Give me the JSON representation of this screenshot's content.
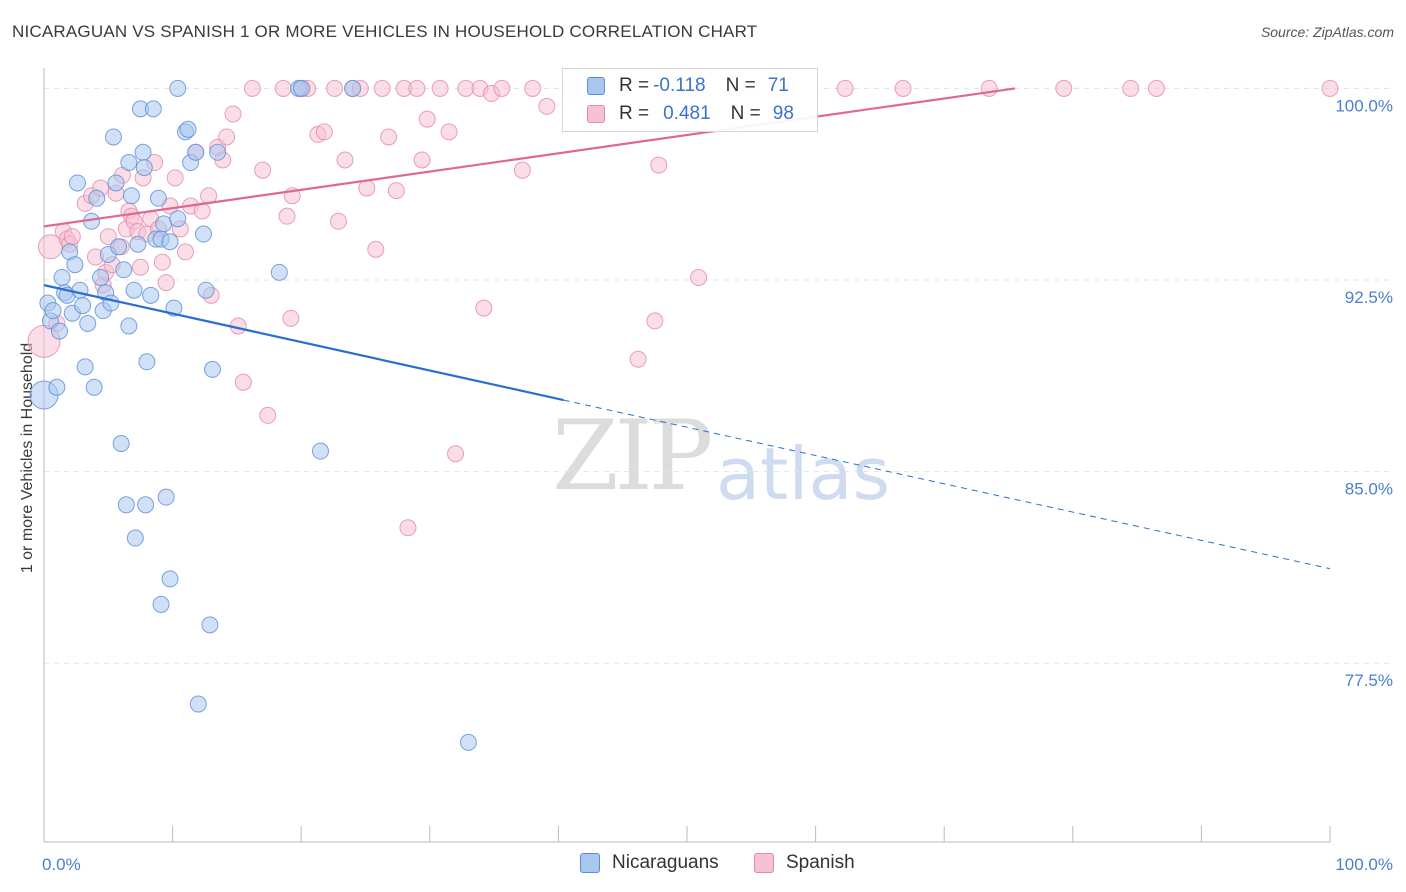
{
  "header": {
    "title": "NICARAGUAN VS SPANISH 1 OR MORE VEHICLES IN HOUSEHOLD CORRELATION CHART",
    "source": "Source: ZipAtlas.com"
  },
  "watermark": {
    "zip": "ZIP",
    "atlas": "atlas"
  },
  "colors": {
    "nicaraguan_fill": "#a9c6ee",
    "nicaraguan_stroke": "#5a8fd8",
    "nicaraguan_line": "#2a6fd0",
    "spanish_fill": "#f6c1d1",
    "spanish_stroke": "#e48aa8",
    "spanish_line": "#e0688f",
    "tick_text": "#4a7fd0",
    "grid": "#e4e4e4"
  },
  "legend": {
    "rows": [
      {
        "r_label": "R =",
        "r_value": "-0.118",
        "n_label": "N =",
        "n_value": "71"
      },
      {
        "r_label": "R =",
        "r_value": "0.481",
        "n_label": "N =",
        "n_value": "98"
      }
    ]
  },
  "bottom_legend": {
    "items": [
      "Nicaraguans",
      "Spanish"
    ]
  },
  "chart_data": {
    "type": "scatter",
    "title": "NICARAGUAN VS SPANISH 1 OR MORE VEHICLES IN HOUSEHOLD CORRELATION CHART",
    "xlabel": "",
    "ylabel": "1 or more Vehicles in Household",
    "xlim": [
      0,
      100
    ],
    "ylim": [
      70.5,
      100.8
    ],
    "x_tick_labels": [
      "0.0%",
      "100.0%"
    ],
    "y_ticks": [
      {
        "value": 100.0,
        "label": "100.0%"
      },
      {
        "value": 92.5,
        "label": "92.5%"
      },
      {
        "value": 85.0,
        "label": "85.0%"
      },
      {
        "value": 77.5,
        "label": "77.5%"
      }
    ],
    "grid": true,
    "legend_position": "top-center",
    "series": [
      {
        "name": "Nicaraguans",
        "r": -0.118,
        "n": 71,
        "trend": {
          "x0": 0,
          "y0": 92.3,
          "x1": 40.4,
          "y1": 87.8,
          "dash_to_x": 100,
          "dash_to_y": 81.2
        },
        "points": [
          [
            0.0,
            88.0,
            14
          ],
          [
            0.3,
            91.6,
            8
          ],
          [
            0.5,
            90.9,
            8
          ],
          [
            0.7,
            91.3,
            8
          ],
          [
            1.0,
            88.3,
            8
          ],
          [
            1.2,
            90.5,
            8
          ],
          [
            1.4,
            92.6,
            8
          ],
          [
            1.6,
            92.0,
            8
          ],
          [
            1.8,
            91.9,
            8
          ],
          [
            2.0,
            93.6,
            8
          ],
          [
            2.2,
            91.2,
            8
          ],
          [
            2.4,
            93.1,
            8
          ],
          [
            2.6,
            96.3,
            8
          ],
          [
            2.8,
            92.1,
            8
          ],
          [
            3.0,
            91.5,
            8
          ],
          [
            3.2,
            89.1,
            8
          ],
          [
            3.4,
            90.8,
            8
          ],
          [
            3.7,
            94.8,
            8
          ],
          [
            3.9,
            88.3,
            8
          ],
          [
            4.1,
            95.7,
            8
          ],
          [
            4.4,
            92.6,
            8
          ],
          [
            4.6,
            91.3,
            8
          ],
          [
            4.8,
            92.0,
            8
          ],
          [
            5.0,
            93.5,
            8
          ],
          [
            5.2,
            91.6,
            8
          ],
          [
            5.4,
            98.1,
            8
          ],
          [
            5.6,
            96.3,
            8
          ],
          [
            5.8,
            93.8,
            8
          ],
          [
            6.0,
            86.1,
            8
          ],
          [
            6.2,
            92.9,
            8
          ],
          [
            6.4,
            83.7,
            8
          ],
          [
            6.6,
            97.1,
            8
          ],
          [
            6.8,
            95.8,
            8
          ],
          [
            6.6,
            90.7,
            8
          ],
          [
            7.0,
            92.1,
            8
          ],
          [
            7.1,
            82.4,
            8
          ],
          [
            7.3,
            93.9,
            8
          ],
          [
            7.5,
            99.2,
            8
          ],
          [
            7.7,
            97.5,
            8
          ],
          [
            7.9,
            83.7,
            8
          ],
          [
            7.8,
            96.9,
            8
          ],
          [
            8.0,
            89.3,
            8
          ],
          [
            8.3,
            91.9,
            8
          ],
          [
            8.5,
            99.2,
            8
          ],
          [
            8.7,
            94.1,
            8
          ],
          [
            8.9,
            95.7,
            8
          ],
          [
            9.1,
            79.8,
            8
          ],
          [
            9.1,
            94.1,
            8
          ],
          [
            9.3,
            94.7,
            8
          ],
          [
            9.5,
            84.0,
            8
          ],
          [
            9.8,
            94.0,
            8
          ],
          [
            9.8,
            80.8,
            8
          ],
          [
            10.1,
            91.4,
            8
          ],
          [
            10.4,
            100.0,
            8
          ],
          [
            10.4,
            94.9,
            8
          ],
          [
            11.0,
            98.3,
            8
          ],
          [
            11.2,
            98.4,
            8
          ],
          [
            11.4,
            97.1,
            8
          ],
          [
            11.8,
            97.5,
            8
          ],
          [
            12.0,
            75.9,
            8
          ],
          [
            12.4,
            94.3,
            8
          ],
          [
            12.6,
            92.1,
            8
          ],
          [
            12.9,
            79.0,
            8
          ],
          [
            13.1,
            89.0,
            8
          ],
          [
            13.5,
            97.5,
            8
          ],
          [
            18.3,
            92.8,
            8
          ],
          [
            19.8,
            100.0,
            8
          ],
          [
            20.0,
            100.0,
            8
          ],
          [
            21.5,
            85.8,
            8
          ],
          [
            24.0,
            100.0,
            8
          ],
          [
            33.0,
            74.4,
            8
          ]
        ]
      },
      {
        "name": "Spanish",
        "r": 0.481,
        "n": 98,
        "trend": {
          "x0": 0,
          "y0": 94.6,
          "x1": 75.5,
          "y1": 100.0
        },
        "points": [
          [
            0.0,
            90.1,
            16
          ],
          [
            0.5,
            93.8,
            12
          ],
          [
            1.0,
            90.8,
            8
          ],
          [
            1.5,
            94.4,
            8
          ],
          [
            1.8,
            94.1,
            8
          ],
          [
            2.0,
            93.9,
            8
          ],
          [
            2.2,
            94.2,
            8
          ],
          [
            3.2,
            95.5,
            8
          ],
          [
            3.7,
            95.8,
            8
          ],
          [
            4.0,
            93.4,
            8
          ],
          [
            4.4,
            96.1,
            8
          ],
          [
            4.6,
            92.3,
            8
          ],
          [
            4.8,
            92.8,
            8
          ],
          [
            5.0,
            94.2,
            8
          ],
          [
            5.3,
            93.1,
            8
          ],
          [
            5.6,
            95.9,
            8
          ],
          [
            6.0,
            93.8,
            8
          ],
          [
            6.1,
            96.6,
            8
          ],
          [
            6.4,
            94.5,
            8
          ],
          [
            6.6,
            95.2,
            8
          ],
          [
            6.8,
            95.0,
            8
          ],
          [
            7.0,
            94.8,
            8
          ],
          [
            7.3,
            94.4,
            8
          ],
          [
            7.5,
            93.0,
            8
          ],
          [
            7.7,
            96.5,
            8
          ],
          [
            8.0,
            94.3,
            8
          ],
          [
            8.3,
            94.9,
            8
          ],
          [
            8.6,
            97.1,
            8
          ],
          [
            8.9,
            94.5,
            8
          ],
          [
            9.2,
            93.2,
            8
          ],
          [
            9.5,
            92.4,
            8
          ],
          [
            9.8,
            95.4,
            8
          ],
          [
            10.2,
            96.5,
            8
          ],
          [
            10.6,
            94.5,
            8
          ],
          [
            11.0,
            93.6,
            8
          ],
          [
            11.4,
            95.4,
            8
          ],
          [
            11.8,
            97.5,
            8
          ],
          [
            12.3,
            95.2,
            8
          ],
          [
            12.8,
            95.8,
            8
          ],
          [
            13.0,
            91.9,
            8
          ],
          [
            13.5,
            97.7,
            8
          ],
          [
            13.9,
            97.2,
            8
          ],
          [
            14.2,
            98.1,
            8
          ],
          [
            14.7,
            99.0,
            8
          ],
          [
            15.1,
            90.7,
            8
          ],
          [
            15.5,
            88.5,
            8
          ],
          [
            16.2,
            100.0,
            8
          ],
          [
            17.0,
            96.8,
            8
          ],
          [
            17.4,
            87.2,
            8
          ],
          [
            18.6,
            100.0,
            8
          ],
          [
            18.9,
            95.0,
            8
          ],
          [
            19.3,
            95.8,
            8
          ],
          [
            19.2,
            91.0,
            8
          ],
          [
            20.1,
            100.0,
            8
          ],
          [
            20.5,
            100.0,
            8
          ],
          [
            21.3,
            98.2,
            8
          ],
          [
            21.8,
            98.3,
            8
          ],
          [
            22.6,
            100.0,
            8
          ],
          [
            22.9,
            94.8,
            8
          ],
          [
            23.4,
            97.2,
            8
          ],
          [
            24.0,
            100.0,
            8
          ],
          [
            24.6,
            100.0,
            8
          ],
          [
            25.1,
            96.1,
            8
          ],
          [
            25.8,
            93.7,
            8
          ],
          [
            26.3,
            100.0,
            8
          ],
          [
            26.8,
            98.1,
            8
          ],
          [
            27.4,
            96.0,
            8
          ],
          [
            28.0,
            100.0,
            8
          ],
          [
            28.3,
            82.8,
            8
          ],
          [
            29.0,
            100.0,
            8
          ],
          [
            29.4,
            97.2,
            8
          ],
          [
            29.8,
            98.8,
            8
          ],
          [
            30.8,
            100.0,
            8
          ],
          [
            31.5,
            98.3,
            8
          ],
          [
            32.0,
            85.7,
            8
          ],
          [
            32.8,
            100.0,
            8
          ],
          [
            33.9,
            100.0,
            8
          ],
          [
            34.2,
            91.4,
            8
          ],
          [
            34.8,
            99.8,
            8
          ],
          [
            35.6,
            100.0,
            8
          ],
          [
            37.2,
            96.8,
            8
          ],
          [
            38.0,
            100.0,
            8
          ],
          [
            39.1,
            99.3,
            8
          ],
          [
            41.0,
            100.0,
            8
          ],
          [
            46.2,
            89.4,
            8
          ],
          [
            47.5,
            90.9,
            8
          ],
          [
            47.8,
            97.0,
            8
          ],
          [
            50.3,
            100.0,
            8
          ],
          [
            50.9,
            92.6,
            8
          ],
          [
            55.0,
            100.0,
            8
          ],
          [
            57.8,
            100.0,
            8
          ],
          [
            62.3,
            100.0,
            8
          ],
          [
            66.8,
            100.0,
            8
          ],
          [
            73.5,
            100.0,
            8
          ],
          [
            79.3,
            100.0,
            8
          ],
          [
            84.5,
            100.0,
            8
          ],
          [
            86.5,
            100.0,
            8
          ],
          [
            100.0,
            100.0,
            8
          ]
        ]
      }
    ]
  }
}
